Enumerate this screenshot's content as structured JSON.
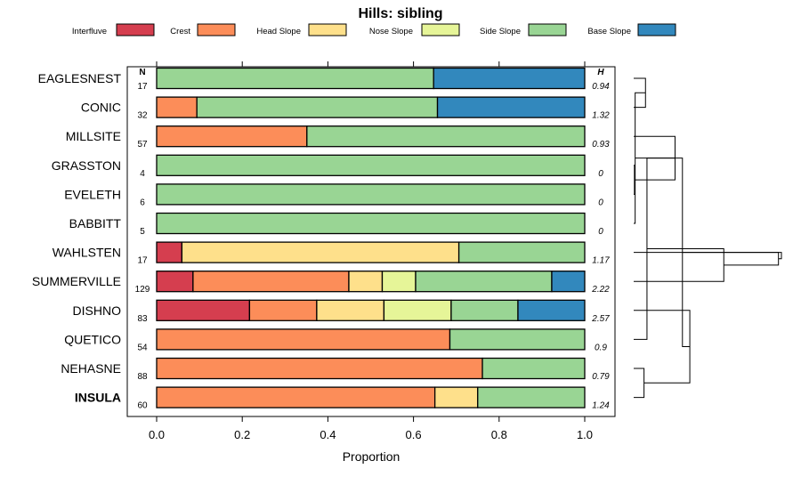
{
  "chart_data": {
    "type": "bar",
    "subtype": "stacked-horizontal-proportion",
    "title": "Hills: sibling",
    "xlabel": "Proportion",
    "ylabel": "",
    "xlim": [
      0,
      1
    ],
    "xticks": [
      0.0,
      0.2,
      0.4,
      0.6,
      0.8,
      1.0
    ],
    "xtick_labels": [
      "0.0",
      "0.2",
      "0.4",
      "0.6",
      "0.8",
      "1.0"
    ],
    "legend_position": "top",
    "series": [
      {
        "name": "Interfluve",
        "color": "#d53e4f"
      },
      {
        "name": "Crest",
        "color": "#fc8d59"
      },
      {
        "name": "Head Slope",
        "color": "#fee08b"
      },
      {
        "name": "Nose Slope",
        "color": "#e6f598"
      },
      {
        "name": "Side Slope",
        "color": "#99d594"
      },
      {
        "name": "Base Slope",
        "color": "#3288bd"
      }
    ],
    "n_header": "N",
    "h_header": "H",
    "highlight_category": "INSULA",
    "categories": [
      "EAGLESNEST",
      "CONIC",
      "MILLSITE",
      "GRASSTON",
      "EVELETH",
      "BABBITT",
      "WAHLSTEN",
      "SUMMERVILLE",
      "DISHNO",
      "QUETICO",
      "NEHASNE",
      "INSULA"
    ],
    "values": [
      [
        0,
        0,
        0,
        0,
        0.647,
        0.353
      ],
      [
        0,
        0.094,
        0,
        0,
        0.562,
        0.344
      ],
      [
        0,
        0.351,
        0,
        0,
        0.649,
        0
      ],
      [
        0,
        0,
        0,
        0,
        1.0,
        0
      ],
      [
        0,
        0,
        0,
        0,
        1.0,
        0
      ],
      [
        0,
        0,
        0,
        0,
        1.0,
        0
      ],
      [
        0.059,
        0,
        0.647,
        0,
        0.294,
        0
      ],
      [
        0.085,
        0.364,
        0.078,
        0.078,
        0.318,
        0.077
      ],
      [
        0.217,
        0.157,
        0.157,
        0.157,
        0.156,
        0.156
      ],
      [
        0,
        0.685,
        0,
        0,
        0.315,
        0
      ],
      [
        0,
        0.761,
        0,
        0,
        0.239,
        0
      ],
      [
        0,
        0.65,
        0.1,
        0,
        0.25,
        0
      ]
    ],
    "n": [
      "17",
      "32",
      "57",
      "4",
      "6",
      "5",
      "17",
      "129",
      "83",
      "54",
      "88",
      "60"
    ],
    "h": [
      "0.94",
      "1.32",
      "0.93",
      "0",
      "0",
      "0",
      "1.17",
      "2.22",
      "2.57",
      "0.9",
      "0.79",
      "1.24"
    ],
    "dendrogram": {
      "merge": [
        [
          0,
          1
        ],
        [
          3,
          4
        ],
        [
          12,
          5
        ],
        [
          13,
          2
        ],
        [
          10,
          11
        ],
        [
          9,
          15
        ],
        [
          8,
          16
        ],
        [
          7,
          17
        ],
        [
          14,
          18
        ],
        [
          6,
          19
        ],
        [
          20,
          21
        ]
      ],
      "heights": [
        0.08,
        0.005,
        0.01,
        0.28,
        0.07,
        0.09,
        0.38,
        0.61,
        0.33,
        0.98,
        1.0
      ]
    }
  }
}
